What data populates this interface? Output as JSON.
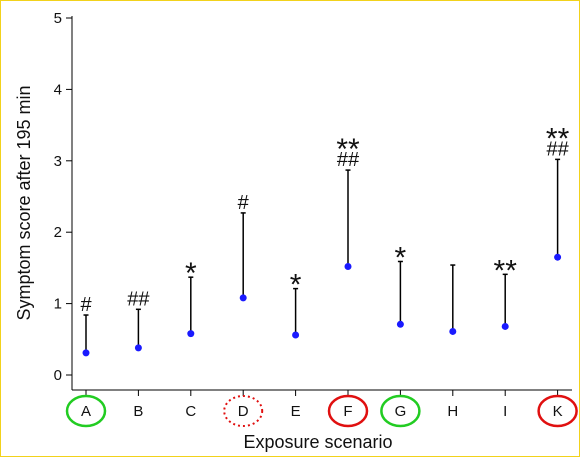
{
  "chart_data": {
    "type": "scatter",
    "xlabel": "Exposure scenario",
    "ylabel": "Symptom score after 195 min",
    "ylim": [
      0,
      5
    ],
    "yticks": [
      "0",
      "1",
      "2",
      "3",
      "4",
      "5"
    ],
    "categories": [
      "A",
      "B",
      "C",
      "D",
      "E",
      "F",
      "G",
      "H",
      "I",
      "K"
    ],
    "mean": [
      0.31,
      0.38,
      0.58,
      1.08,
      0.56,
      1.52,
      0.71,
      0.61,
      0.68,
      1.65
    ],
    "upper": [
      0.84,
      0.92,
      1.37,
      2.27,
      1.21,
      2.87,
      1.59,
      1.54,
      1.41,
      3.02
    ],
    "annotations": [
      {
        "category": "A",
        "text": "#"
      },
      {
        "category": "B",
        "text": "##"
      },
      {
        "category": "C",
        "text": "*"
      },
      {
        "category": "D",
        "text": "#"
      },
      {
        "category": "E",
        "text": "*"
      },
      {
        "category": "F",
        "text": "**\n##"
      },
      {
        "category": "G",
        "text": "*"
      },
      {
        "category": "I",
        "text": "**"
      },
      {
        "category": "K",
        "text": "**\n##"
      }
    ],
    "highlights": [
      {
        "category": "A",
        "color": "#22cc22",
        "style": "solid"
      },
      {
        "category": "D",
        "color": "#e01010",
        "style": "dotted"
      },
      {
        "category": "F",
        "color": "#e01010",
        "style": "solid"
      },
      {
        "category": "G",
        "color": "#22cc22",
        "style": "solid"
      },
      {
        "category": "K",
        "color": "#e01010",
        "style": "solid"
      }
    ],
    "colors": {
      "point": "#1a1aff",
      "line": "#000000",
      "frame": "#f2d21b"
    },
    "grid": false,
    "legend": "none"
  }
}
